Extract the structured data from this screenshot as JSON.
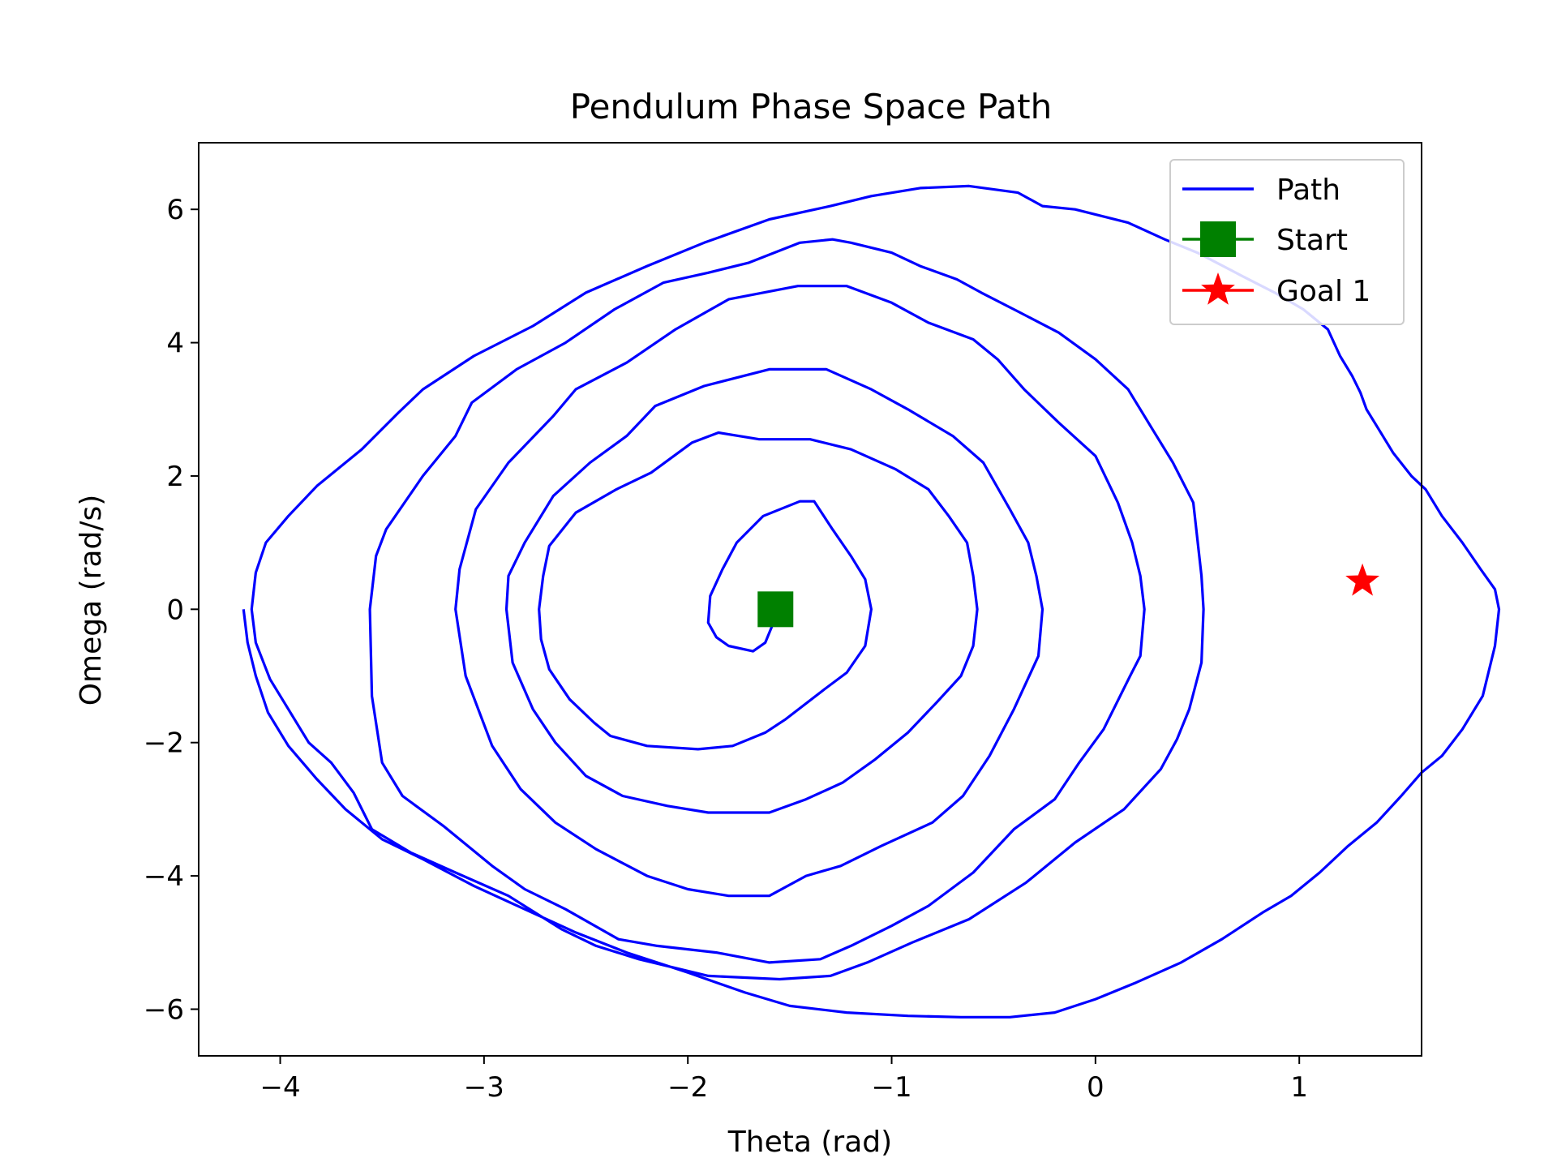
{
  "chart_data": {
    "type": "line",
    "title": "Pendulum Phase Space Path",
    "xlabel": "Theta (rad)",
    "ylabel": "Omega (rad/s)",
    "xlim": [
      -4.4,
      1.6
    ],
    "ylim": [
      -6.7,
      7.0
    ],
    "xticks": [
      -4,
      -3,
      -2,
      -1,
      0,
      1
    ],
    "yticks": [
      -6,
      -4,
      -2,
      0,
      2,
      4,
      6
    ],
    "xtick_labels": [
      "−4",
      "−3",
      "−2",
      "−1",
      "0",
      "1"
    ],
    "ytick_labels": [
      "−6",
      "−4",
      "−2",
      "0",
      "2",
      "4",
      "6"
    ],
    "grid": false,
    "legend_position": "top-right",
    "series": [
      {
        "name": "Path",
        "color": "#0000ff",
        "marker": "none",
        "points": [
          [
            -1.57,
            0.0
          ],
          [
            -1.58,
            -0.2
          ],
          [
            -1.62,
            -0.5
          ],
          [
            -1.68,
            -0.63
          ],
          [
            -1.8,
            -0.55
          ],
          [
            -1.86,
            -0.42
          ],
          [
            -1.9,
            -0.2
          ],
          [
            -1.89,
            0.2
          ],
          [
            -1.83,
            0.6
          ],
          [
            -1.76,
            1.0
          ],
          [
            -1.63,
            1.4
          ],
          [
            -1.45,
            1.62
          ],
          [
            -1.38,
            1.62
          ],
          [
            -1.29,
            1.2
          ],
          [
            -1.2,
            0.8
          ],
          [
            -1.13,
            0.45
          ],
          [
            -1.1,
            0.0
          ],
          [
            -1.13,
            -0.55
          ],
          [
            -1.22,
            -0.95
          ],
          [
            -1.33,
            -1.2
          ],
          [
            -1.52,
            -1.65
          ],
          [
            -1.62,
            -1.85
          ],
          [
            -1.78,
            -2.05
          ],
          [
            -1.95,
            -2.1
          ],
          [
            -2.2,
            -2.05
          ],
          [
            -2.38,
            -1.9
          ],
          [
            -2.46,
            -1.7
          ],
          [
            -2.58,
            -1.35
          ],
          [
            -2.68,
            -0.9
          ],
          [
            -2.72,
            -0.45
          ],
          [
            -2.73,
            0.0
          ],
          [
            -2.71,
            0.5
          ],
          [
            -2.68,
            0.95
          ],
          [
            -2.55,
            1.45
          ],
          [
            -2.35,
            1.8
          ],
          [
            -2.18,
            2.05
          ],
          [
            -1.98,
            2.5
          ],
          [
            -1.85,
            2.65
          ],
          [
            -1.65,
            2.55
          ],
          [
            -1.4,
            2.55
          ],
          [
            -1.2,
            2.4
          ],
          [
            -0.98,
            2.1
          ],
          [
            -0.82,
            1.8
          ],
          [
            -0.72,
            1.4
          ],
          [
            -0.63,
            1.0
          ],
          [
            -0.6,
            0.5
          ],
          [
            -0.58,
            0.0
          ],
          [
            -0.6,
            -0.55
          ],
          [
            -0.66,
            -1.0
          ],
          [
            -0.78,
            -1.4
          ],
          [
            -0.92,
            -1.85
          ],
          [
            -1.08,
            -2.25
          ],
          [
            -1.24,
            -2.6
          ],
          [
            -1.42,
            -2.85
          ],
          [
            -1.6,
            -3.05
          ],
          [
            -1.9,
            -3.05
          ],
          [
            -2.1,
            -2.95
          ],
          [
            -2.32,
            -2.8
          ],
          [
            -2.5,
            -2.5
          ],
          [
            -2.65,
            -2.0
          ],
          [
            -2.76,
            -1.5
          ],
          [
            -2.86,
            -0.8
          ],
          [
            -2.89,
            0.0
          ],
          [
            -2.88,
            0.5
          ],
          [
            -2.8,
            1.0
          ],
          [
            -2.66,
            1.7
          ],
          [
            -2.48,
            2.2
          ],
          [
            -2.3,
            2.6
          ],
          [
            -2.16,
            3.05
          ],
          [
            -1.92,
            3.35
          ],
          [
            -1.6,
            3.6
          ],
          [
            -1.32,
            3.6
          ],
          [
            -1.1,
            3.3
          ],
          [
            -0.92,
            3.0
          ],
          [
            -0.7,
            2.6
          ],
          [
            -0.55,
            2.2
          ],
          [
            -0.42,
            1.5
          ],
          [
            -0.33,
            1.0
          ],
          [
            -0.29,
            0.5
          ],
          [
            -0.26,
            0.0
          ],
          [
            -0.28,
            -0.7
          ],
          [
            -0.4,
            -1.5
          ],
          [
            -0.52,
            -2.2
          ],
          [
            -0.65,
            -2.8
          ],
          [
            -0.8,
            -3.2
          ],
          [
            -1.05,
            -3.55
          ],
          [
            -1.25,
            -3.85
          ],
          [
            -1.42,
            -4.0
          ],
          [
            -1.6,
            -4.3
          ],
          [
            -1.8,
            -4.3
          ],
          [
            -2.0,
            -4.2
          ],
          [
            -2.2,
            -4.0
          ],
          [
            -2.45,
            -3.6
          ],
          [
            -2.65,
            -3.2
          ],
          [
            -2.82,
            -2.7
          ],
          [
            -2.96,
            -2.05
          ],
          [
            -3.09,
            -1.0
          ],
          [
            -3.14,
            0.0
          ],
          [
            -3.12,
            0.6
          ],
          [
            -3.04,
            1.5
          ],
          [
            -2.88,
            2.2
          ],
          [
            -2.66,
            2.9
          ],
          [
            -2.55,
            3.3
          ],
          [
            -2.3,
            3.7
          ],
          [
            -2.06,
            4.2
          ],
          [
            -1.8,
            4.65
          ],
          [
            -1.46,
            4.85
          ],
          [
            -1.22,
            4.85
          ],
          [
            -1.0,
            4.6
          ],
          [
            -0.82,
            4.3
          ],
          [
            -0.6,
            4.05
          ],
          [
            -0.48,
            3.75
          ],
          [
            -0.35,
            3.3
          ],
          [
            -0.18,
            2.8
          ],
          [
            0.0,
            2.3
          ],
          [
            0.11,
            1.6
          ],
          [
            0.18,
            1.0
          ],
          [
            0.22,
            0.5
          ],
          [
            0.24,
            0.0
          ],
          [
            0.22,
            -0.7
          ],
          [
            0.17,
            -1.0
          ],
          [
            0.04,
            -1.8
          ],
          [
            -0.08,
            -2.3
          ],
          [
            -0.2,
            -2.85
          ],
          [
            -0.4,
            -3.3
          ],
          [
            -0.6,
            -3.95
          ],
          [
            -0.82,
            -4.45
          ],
          [
            -1.0,
            -4.75
          ],
          [
            -1.2,
            -5.05
          ],
          [
            -1.35,
            -5.25
          ],
          [
            -1.6,
            -5.3
          ],
          [
            -1.86,
            -5.15
          ],
          [
            -2.15,
            -5.05
          ],
          [
            -2.34,
            -4.95
          ],
          [
            -2.6,
            -4.5
          ],
          [
            -2.8,
            -4.2
          ],
          [
            -2.96,
            -3.85
          ],
          [
            -3.2,
            -3.25
          ],
          [
            -3.4,
            -2.8
          ],
          [
            -3.5,
            -2.3
          ],
          [
            -3.55,
            -1.3
          ],
          [
            -3.56,
            0.0
          ],
          [
            -3.53,
            0.8
          ],
          [
            -3.48,
            1.2
          ],
          [
            -3.3,
            2.0
          ],
          [
            -3.14,
            2.6
          ],
          [
            -3.06,
            3.1
          ],
          [
            -2.84,
            3.6
          ],
          [
            -2.6,
            4.0
          ],
          [
            -2.36,
            4.5
          ],
          [
            -2.12,
            4.9
          ],
          [
            -1.9,
            5.05
          ],
          [
            -1.7,
            5.2
          ],
          [
            -1.45,
            5.5
          ],
          [
            -1.29,
            5.55
          ],
          [
            -1.2,
            5.5
          ],
          [
            -1.0,
            5.35
          ],
          [
            -0.86,
            5.15
          ],
          [
            -0.68,
            4.95
          ],
          [
            -0.56,
            4.75
          ],
          [
            -0.4,
            4.5
          ],
          [
            -0.18,
            4.15
          ],
          [
            0.0,
            3.75
          ],
          [
            0.16,
            3.3
          ],
          [
            0.28,
            2.7
          ],
          [
            0.38,
            2.2
          ],
          [
            0.48,
            1.6
          ],
          [
            0.52,
            0.5
          ],
          [
            0.53,
            0.0
          ],
          [
            0.52,
            -0.8
          ],
          [
            0.46,
            -1.5
          ],
          [
            0.4,
            -1.95
          ],
          [
            0.32,
            -2.4
          ],
          [
            0.14,
            -3.0
          ],
          [
            -0.1,
            -3.5
          ],
          [
            -0.34,
            -4.1
          ],
          [
            -0.62,
            -4.65
          ],
          [
            -0.9,
            -5.0
          ],
          [
            -1.12,
            -5.3
          ],
          [
            -1.3,
            -5.5
          ],
          [
            -1.55,
            -5.55
          ],
          [
            -1.9,
            -5.5
          ],
          [
            -2.24,
            -5.25
          ],
          [
            -2.45,
            -5.05
          ],
          [
            -2.62,
            -4.8
          ],
          [
            -2.88,
            -4.3
          ],
          [
            -3.14,
            -3.95
          ],
          [
            -3.36,
            -3.65
          ],
          [
            -3.55,
            -3.3
          ],
          [
            -3.64,
            -2.75
          ],
          [
            -3.75,
            -2.3
          ],
          [
            -3.86,
            -2.0
          ],
          [
            -3.96,
            -1.5
          ],
          [
            -4.05,
            -1.05
          ],
          [
            -4.12,
            -0.5
          ],
          [
            -4.14,
            0.0
          ],
          [
            -4.12,
            0.55
          ],
          [
            -4.07,
            1.0
          ],
          [
            -3.96,
            1.4
          ],
          [
            -3.82,
            1.85
          ],
          [
            -3.6,
            2.4
          ],
          [
            -3.42,
            2.95
          ],
          [
            -3.3,
            3.3
          ],
          [
            -3.05,
            3.8
          ],
          [
            -2.76,
            4.25
          ],
          [
            -2.5,
            4.75
          ],
          [
            -2.2,
            5.15
          ],
          [
            -1.92,
            5.5
          ],
          [
            -1.6,
            5.85
          ],
          [
            -1.3,
            6.05
          ],
          [
            -1.1,
            6.2
          ],
          [
            -0.86,
            6.32
          ],
          [
            -0.62,
            6.35
          ],
          [
            -0.38,
            6.25
          ],
          [
            -0.26,
            6.05
          ],
          [
            -0.1,
            6.0
          ],
          [
            0.16,
            5.8
          ],
          [
            0.34,
            5.55
          ],
          [
            0.5,
            5.35
          ],
          [
            0.72,
            5.0
          ],
          [
            0.88,
            4.75
          ],
          [
            1.02,
            4.5
          ],
          [
            1.14,
            4.2
          ],
          [
            1.2,
            3.8
          ],
          [
            1.26,
            3.5
          ],
          [
            1.3,
            3.25
          ],
          [
            1.33,
            3.0
          ],
          [
            1.38,
            2.75
          ],
          [
            1.46,
            2.35
          ],
          [
            1.55,
            2.0
          ],
          [
            1.62,
            1.8
          ],
          [
            1.7,
            1.4
          ],
          [
            1.8,
            1.0
          ],
          [
            1.89,
            0.6
          ],
          [
            1.96,
            0.3
          ],
          [
            1.98,
            0.0
          ],
          [
            1.96,
            -0.55
          ],
          [
            1.9,
            -1.3
          ],
          [
            1.8,
            -1.8
          ],
          [
            1.7,
            -2.2
          ],
          [
            1.6,
            -2.45
          ],
          [
            1.5,
            -2.8
          ],
          [
            1.38,
            -3.2
          ],
          [
            1.24,
            -3.55
          ],
          [
            1.1,
            -3.95
          ],
          [
            0.96,
            -4.3
          ],
          [
            0.82,
            -4.55
          ],
          [
            0.62,
            -4.95
          ],
          [
            0.42,
            -5.3
          ],
          [
            0.2,
            -5.6
          ],
          [
            0.0,
            -5.85
          ],
          [
            -0.2,
            -6.05
          ],
          [
            -0.42,
            -6.12
          ],
          [
            -0.66,
            -6.12
          ],
          [
            -0.92,
            -6.1
          ],
          [
            -1.22,
            -6.05
          ],
          [
            -1.5,
            -5.95
          ],
          [
            -1.72,
            -5.75
          ],
          [
            -2.0,
            -5.45
          ],
          [
            -2.3,
            -5.15
          ],
          [
            -2.55,
            -4.85
          ],
          [
            -2.8,
            -4.5
          ],
          [
            -3.05,
            -4.15
          ],
          [
            -3.3,
            -3.75
          ],
          [
            -3.5,
            -3.45
          ],
          [
            -3.68,
            -3.0
          ],
          [
            -3.82,
            -2.55
          ],
          [
            -3.96,
            -2.05
          ],
          [
            -4.06,
            -1.55
          ],
          [
            -4.12,
            -1.0
          ],
          [
            -4.16,
            -0.5
          ],
          [
            -4.18,
            0.0
          ]
        ]
      },
      {
        "name": "Start",
        "color": "#008000",
        "marker": "square",
        "points": [
          [
            -1.57,
            0.0
          ]
        ]
      },
      {
        "name": "Goal 1",
        "color": "#ff0000",
        "marker": "star",
        "points": [
          [
            1.31,
            0.42
          ]
        ]
      }
    ]
  }
}
